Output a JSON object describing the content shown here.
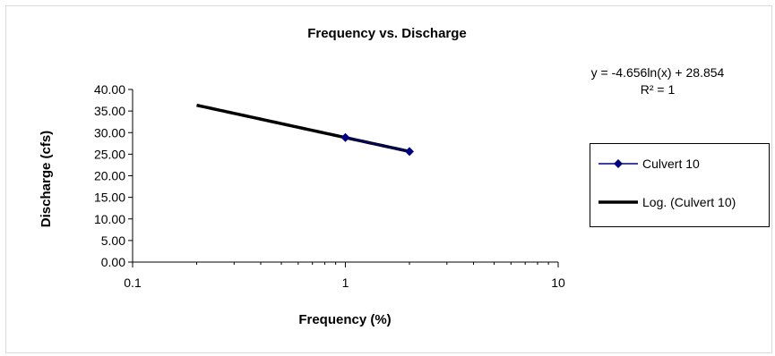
{
  "chart_data": {
    "type": "scatter",
    "title": "Frequency vs. Discharge",
    "xlabel": "Frequency (%)",
    "ylabel": "Discharge (cfs)",
    "xscale": "log",
    "xlim": [
      0.1,
      10
    ],
    "ylim": [
      0,
      40
    ],
    "x_ticks": [
      "0.1",
      "1",
      "10"
    ],
    "y_ticks": [
      "0.00",
      "5.00",
      "10.00",
      "15.00",
      "20.00",
      "25.00",
      "30.00",
      "35.00",
      "40.00"
    ],
    "grid": false,
    "legend_position": "right",
    "series": [
      {
        "name": "Culvert 10",
        "marker": "diamond",
        "color": "#000080",
        "x": [
          1,
          2
        ],
        "y": [
          28.854,
          25.627
        ]
      }
    ],
    "trendline": {
      "name": "Log. (Culvert 10)",
      "color": "#000000",
      "x_range": [
        0.2,
        2
      ],
      "a": -4.656,
      "b": 28.854,
      "equation": "y = -4.656ln(x) + 28.854",
      "r_squared": "R² = 1"
    }
  }
}
